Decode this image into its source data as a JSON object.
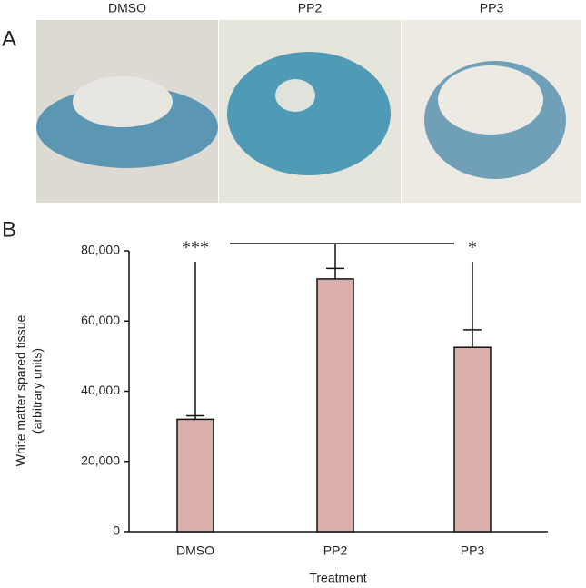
{
  "panels": {
    "a": "A",
    "b": "B"
  },
  "images": [
    {
      "label": "DMSO"
    },
    {
      "label": "PP2"
    },
    {
      "label": "PP3"
    }
  ],
  "chart_data": {
    "type": "bar",
    "categories": [
      "DMSO",
      "PP2",
      "PP3"
    ],
    "values": [
      32000,
      72000,
      52500
    ],
    "errors": [
      1000,
      3000,
      5000
    ],
    "color": "#d9aeab",
    "ylim": [
      0,
      80000
    ],
    "yticks": [
      0,
      {
        "value": 20000,
        "label": "20,000"
      },
      {
        "value": 40000,
        "label": "40,000"
      },
      {
        "value": 60000,
        "label": "60,000"
      },
      {
        "value": 80000,
        "label": "80,000"
      }
    ],
    "ylabel": "White matter spared tissue",
    "ylabel_sub": "(arbitrary units)",
    "xlabel": "Treatment",
    "annotations": [
      "***",
      "*"
    ]
  }
}
